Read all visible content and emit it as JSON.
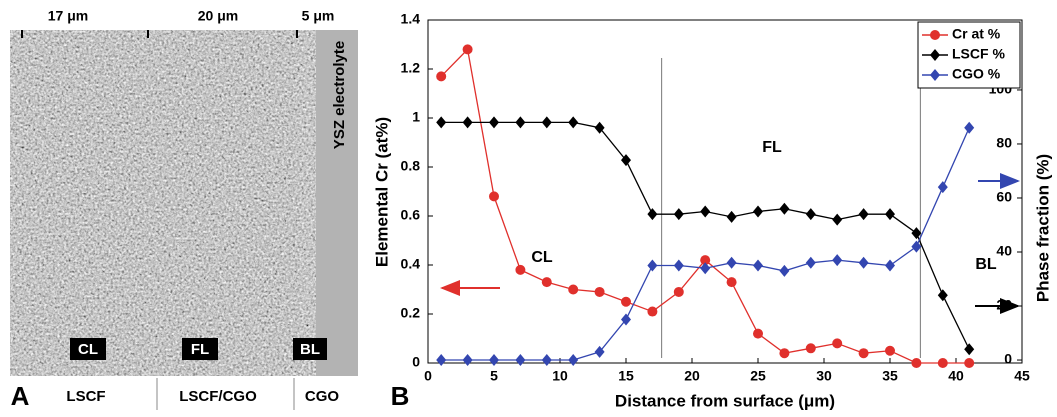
{
  "panel_a": {
    "panel_label": "A",
    "scale_labels": [
      "17 μm",
      "20 μm",
      "5 μm"
    ],
    "region_labels": [
      "CL",
      "FL",
      "BL"
    ],
    "electrolyte_label": "YSZ electrolyte",
    "materials": [
      "LSCF",
      "LSCF/CGO",
      "CGO"
    ]
  },
  "chart_data": {
    "type": "line",
    "panel_label": "B",
    "x_label": "Distance from surface (μm)",
    "y_label": "Elemental Cr (at%)",
    "y2_label": "Phase fraction (%)",
    "x": [
      1,
      3,
      5,
      7,
      9,
      11,
      13,
      15,
      17,
      19,
      21,
      23,
      25,
      27,
      29,
      31,
      33,
      35,
      37,
      39,
      41
    ],
    "series": [
      {
        "name": "Cr at %",
        "color": "#e0302c",
        "marker": "circle",
        "values": [
          1.17,
          1.28,
          0.68,
          0.38,
          0.33,
          0.3,
          0.29,
          0.25,
          0.21,
          0.29,
          0.42,
          0.33,
          0.12,
          0.04,
          0.06,
          0.08,
          0.04,
          0.05,
          0.0,
          0.0,
          0.0
        ]
      },
      {
        "name": "LSCF %",
        "color": "#000000",
        "marker": "diamond",
        "axis": "y2",
        "values": [
          88,
          88,
          88,
          88,
          88,
          88,
          86,
          74,
          54,
          54,
          55,
          53,
          55,
          56,
          54,
          52,
          54,
          54,
          47,
          24,
          4
        ]
      },
      {
        "name": "CGO %",
        "color": "#3346b0",
        "marker": "diamond",
        "axis": "y2",
        "values": [
          0,
          0,
          0,
          0,
          0,
          0,
          3,
          15,
          35,
          35,
          34,
          36,
          35,
          33,
          36,
          37,
          36,
          35,
          42,
          64,
          86
        ]
      }
    ],
    "annotations": [
      "CL",
      "FL",
      "BL"
    ],
    "vlines": [
      17.7,
      37.3
    ],
    "xlim": [
      0,
      45
    ],
    "xticks": [
      0,
      5,
      10,
      15,
      20,
      25,
      30,
      35,
      40,
      45
    ],
    "ylim": [
      0,
      1.4
    ],
    "yticks": [
      0,
      0.2,
      0.4,
      0.6,
      0.8,
      1,
      1.2,
      1.4
    ],
    "y2lim": [
      -1.1,
      125.9
    ],
    "y2ticks": [
      0,
      20,
      40,
      60,
      80,
      100
    ],
    "legend": "upper right"
  }
}
